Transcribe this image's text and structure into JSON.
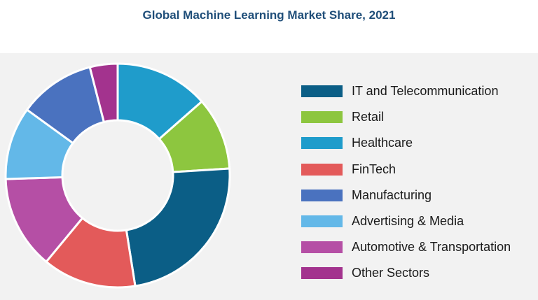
{
  "chart_data": {
    "type": "pie",
    "title": "Global Machine Learning Market Share, 2021",
    "donut": true,
    "legend_position": "right",
    "unit": "approx. share of total (%)",
    "series": [
      {
        "name": "IT and Telecommunication",
        "value": 23.5,
        "color": "#0b5e86"
      },
      {
        "name": "Retail",
        "value": 10.5,
        "color": "#8dc63f"
      },
      {
        "name": "Healthcare",
        "value": 13.5,
        "color": "#1f9ccb"
      },
      {
        "name": "FinTech",
        "value": 13.5,
        "color": "#e35a5a"
      },
      {
        "name": "Manufacturing",
        "value": 11.0,
        "color": "#4a72bf"
      },
      {
        "name": "Advertising & Media",
        "value": 10.5,
        "color": "#63b8e8"
      },
      {
        "name": "Automotive & Transportation",
        "value": 13.5,
        "color": "#b54fa5"
      },
      {
        "name": "Other Sectors",
        "value": 4.0,
        "color": "#a3338e"
      }
    ],
    "draw_order": [
      "Healthcare",
      "Retail",
      "IT and Telecommunication",
      "FinTech",
      "Automotive & Transportation",
      "Advertising & Media",
      "Manufacturing",
      "Other Sectors"
    ]
  }
}
